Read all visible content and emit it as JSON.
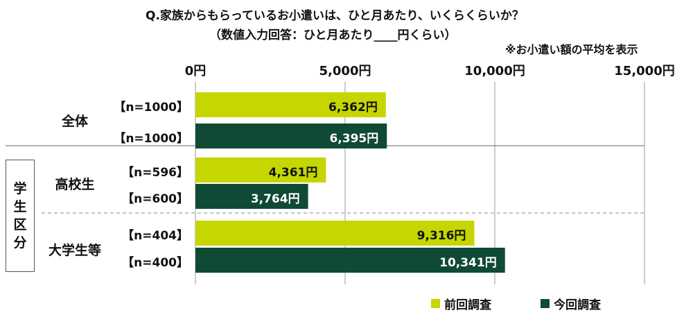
{
  "title_line1": "Q.家族からもらっているお小遣いは、ひと月あたり、いくらくらいか？",
  "title_line2": "（数値入力回答：ひと月あたり____円くらい）",
  "note": "※お小遣い額の平均を表示",
  "colors": {
    "previous": "#c5d600",
    "current": "#0f4a34",
    "grid": "#9a9a9a",
    "dashed": "#8a8a8a"
  },
  "segment_box": {
    "chars": [
      "学",
      "生",
      "区",
      "分"
    ]
  },
  "legend": [
    {
      "label": "前回調査",
      "color": "#c5d600"
    },
    {
      "label": "今回調査",
      "color": "#0f4a34"
    }
  ],
  "chart_data": {
    "type": "bar",
    "orientation": "horizontal",
    "unit": "円",
    "xlim": [
      0,
      15000
    ],
    "x_ticks": [
      {
        "value": 0,
        "label": "0円"
      },
      {
        "value": 5000,
        "label": "5,000円"
      },
      {
        "value": 10000,
        "label": "10,000円"
      },
      {
        "value": 15000,
        "label": "15,000円"
      }
    ],
    "groups": [
      {
        "label": "全体",
        "bars": [
          {
            "series": "前回調査",
            "n": "【n=1000】",
            "value": 6362,
            "value_label": "6,362円"
          },
          {
            "series": "今回調査",
            "n": "【n=1000】",
            "value": 6395,
            "value_label": "6,395円"
          }
        ]
      },
      {
        "label": "高校生",
        "bars": [
          {
            "series": "前回調査",
            "n": "【n=596】",
            "value": 4361,
            "value_label": "4,361円"
          },
          {
            "series": "今回調査",
            "n": "【n=600】",
            "value": 3764,
            "value_label": "3,764円"
          }
        ]
      },
      {
        "label": "大学生等",
        "bars": [
          {
            "series": "前回調査",
            "n": "【n=404】",
            "value": 9316,
            "value_label": "9,316円"
          },
          {
            "series": "今回調査",
            "n": "【n=400】",
            "value": 10341,
            "value_label": "10,341円"
          }
        ]
      }
    ]
  }
}
